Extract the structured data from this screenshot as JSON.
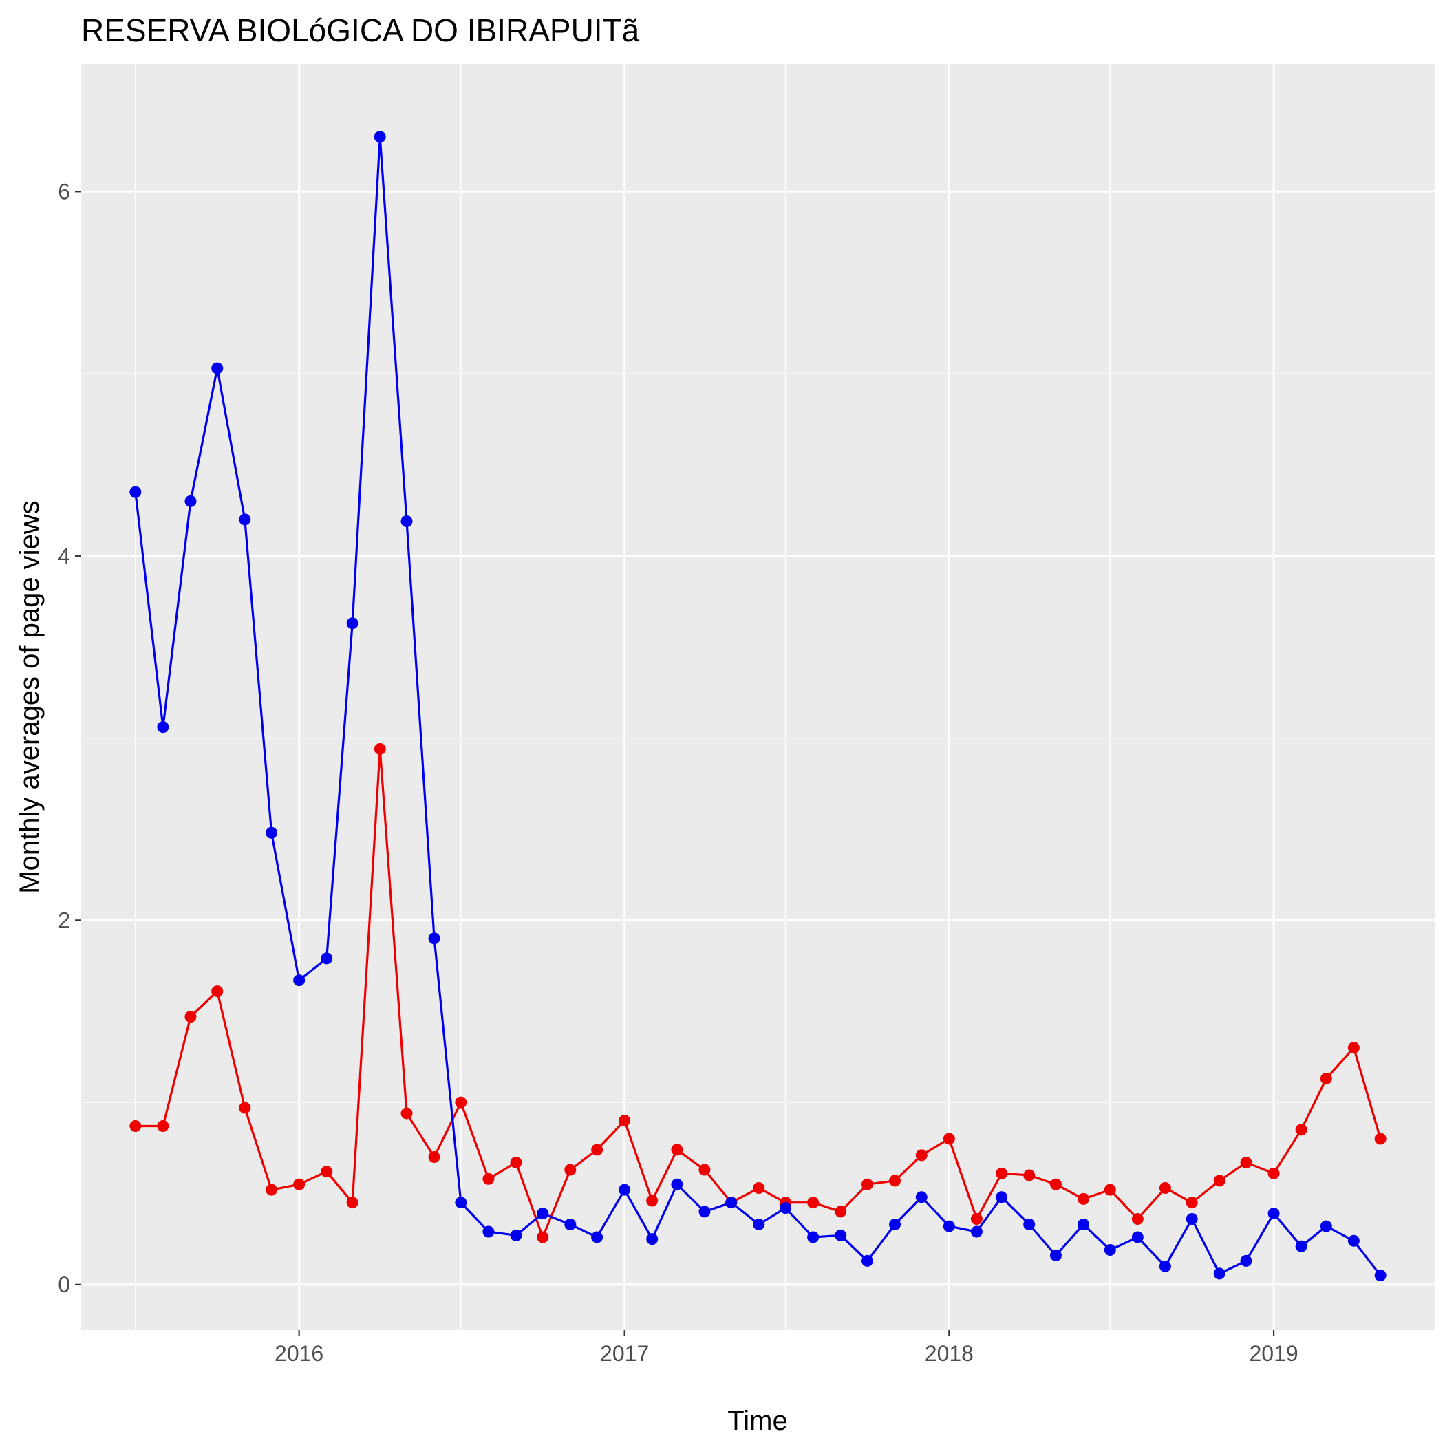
{
  "chart_data": {
    "type": "line",
    "title": "RESERVA BIOLóGICA DO IBIRAPUITã",
    "xlabel": "Time",
    "ylabel": "Monthly averages of page views",
    "xlim": [
      "2015-05-01",
      "2019-07-01"
    ],
    "ylim": [
      -0.25,
      6.7
    ],
    "x_ticks": [
      "2016",
      "2017",
      "2018",
      "2019"
    ],
    "y_ticks": [
      "0",
      "2",
      "4",
      "6"
    ],
    "grid": true,
    "legend": "none",
    "x": [
      "2015-07-01",
      "2015-08-01",
      "2015-09-01",
      "2015-10-01",
      "2015-11-01",
      "2015-12-01",
      "2016-01-01",
      "2016-02-01",
      "2016-03-01",
      "2016-04-01",
      "2016-05-01",
      "2016-06-01",
      "2016-07-01",
      "2016-08-01",
      "2016-09-01",
      "2016-10-01",
      "2016-11-01",
      "2016-12-01",
      "2017-01-01",
      "2017-02-01",
      "2017-03-01",
      "2017-04-01",
      "2017-05-01",
      "2017-06-01",
      "2017-07-01",
      "2017-08-01",
      "2017-09-01",
      "2017-10-01",
      "2017-11-01",
      "2017-12-01",
      "2018-01-01",
      "2018-02-01",
      "2018-03-01",
      "2018-04-01",
      "2018-05-01",
      "2018-06-01",
      "2018-07-01",
      "2018-08-01",
      "2018-09-01",
      "2018-10-01",
      "2018-11-01",
      "2018-12-01",
      "2019-01-01",
      "2019-02-01",
      "2019-03-01",
      "2019-04-01",
      "2019-05-01"
    ],
    "series": [
      {
        "color": "#0000ee",
        "values": [
          4.35,
          3.06,
          4.3,
          5.03,
          4.2,
          2.48,
          1.67,
          1.79,
          3.63,
          6.3,
          4.19,
          1.9,
          0.45,
          0.29,
          0.27,
          0.39,
          0.33,
          0.26,
          0.52,
          0.25,
          0.55,
          0.4,
          0.45,
          0.33,
          0.42,
          0.26,
          0.27,
          0.13,
          0.33,
          0.48,
          0.32,
          0.29,
          0.48,
          0.33,
          0.16,
          0.33,
          0.19,
          0.26,
          0.1,
          0.36,
          0.06,
          0.13,
          0.39,
          0.21,
          0.32,
          0.24,
          0.05
        ]
      },
      {
        "color": "#ee0000",
        "values": [
          0.87,
          0.87,
          1.47,
          1.61,
          0.97,
          0.52,
          0.55,
          0.62,
          0.45,
          2.94,
          0.94,
          0.7,
          1.0,
          0.58,
          0.67,
          0.26,
          0.63,
          0.74,
          0.9,
          0.46,
          0.74,
          0.63,
          0.45,
          0.53,
          0.45,
          0.45,
          0.4,
          0.55,
          0.57,
          0.71,
          0.8,
          0.36,
          0.61,
          0.6,
          0.55,
          0.47,
          0.52,
          0.36,
          0.53,
          0.45,
          0.57,
          0.67,
          0.61,
          0.85,
          1.13,
          1.3,
          0.8
        ]
      }
    ]
  }
}
